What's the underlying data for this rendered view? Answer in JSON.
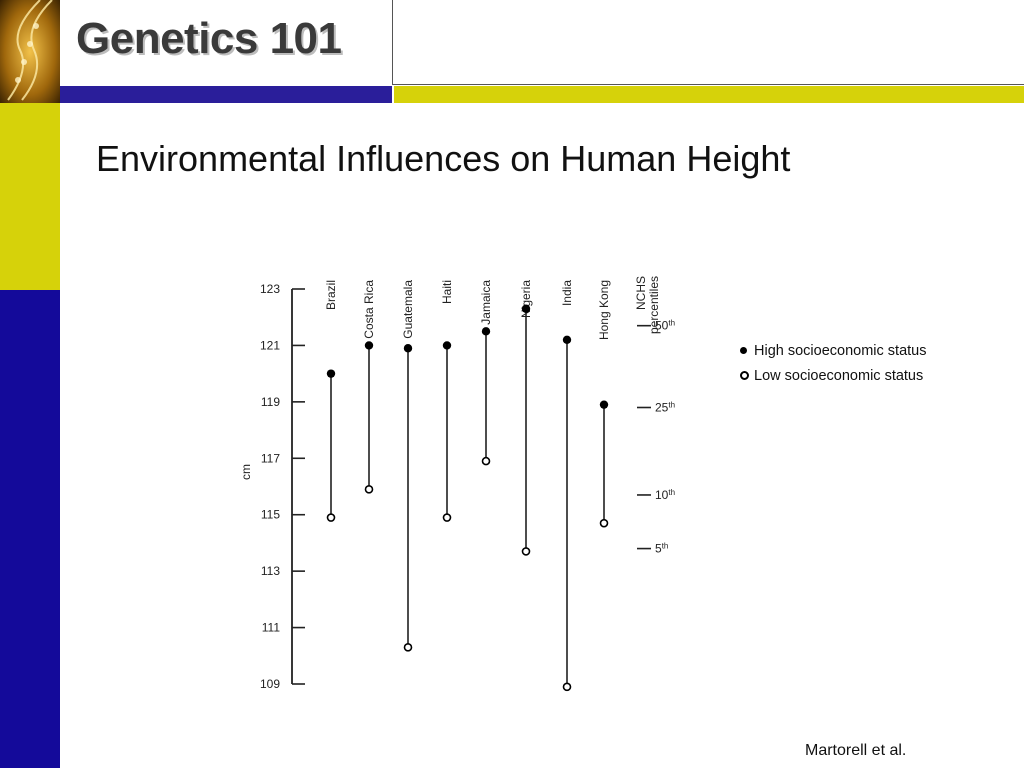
{
  "slide": {
    "title": "Genetics 101",
    "heading": "Environmental Influences on Human Height",
    "source": "Martorell et al."
  },
  "colors": {
    "banner_blue": "#2a1e9a",
    "banner_yellow": "#d6d20a",
    "sidebar_blue": "#140a9a",
    "logo_gold": "#b07a10"
  },
  "chart_data": {
    "type": "scatter",
    "title": "",
    "xlabel": "",
    "ylabel": "cm",
    "ylim": [
      109,
      123
    ],
    "yticks": [
      123,
      121,
      119,
      117,
      115,
      113,
      111,
      109
    ],
    "categories": [
      "Brazil",
      "Costa Rica",
      "Guatemala",
      "Haiti",
      "Jamaica",
      "Nigeria",
      "India",
      "Hong Kong"
    ],
    "series": [
      {
        "name": "High socioeconomic status",
        "values": [
          120.0,
          121.0,
          120.9,
          121.0,
          121.5,
          122.3,
          121.2,
          118.9
        ]
      },
      {
        "name": "Low socioeconomic status",
        "values": [
          114.9,
          115.9,
          110.3,
          114.9,
          116.9,
          113.7,
          108.9,
          114.7
        ]
      }
    ],
    "reference": {
      "label": "NCHS percentiles",
      "marks": [
        {
          "label": "50",
          "suffix": "th",
          "value": 121.7
        },
        {
          "label": "25",
          "suffix": "th",
          "value": 118.8
        },
        {
          "label": "10",
          "suffix": "th",
          "value": 115.7
        },
        {
          "label": "5",
          "suffix": "th",
          "value": 113.8
        }
      ]
    },
    "legend": {
      "position": "right"
    }
  }
}
